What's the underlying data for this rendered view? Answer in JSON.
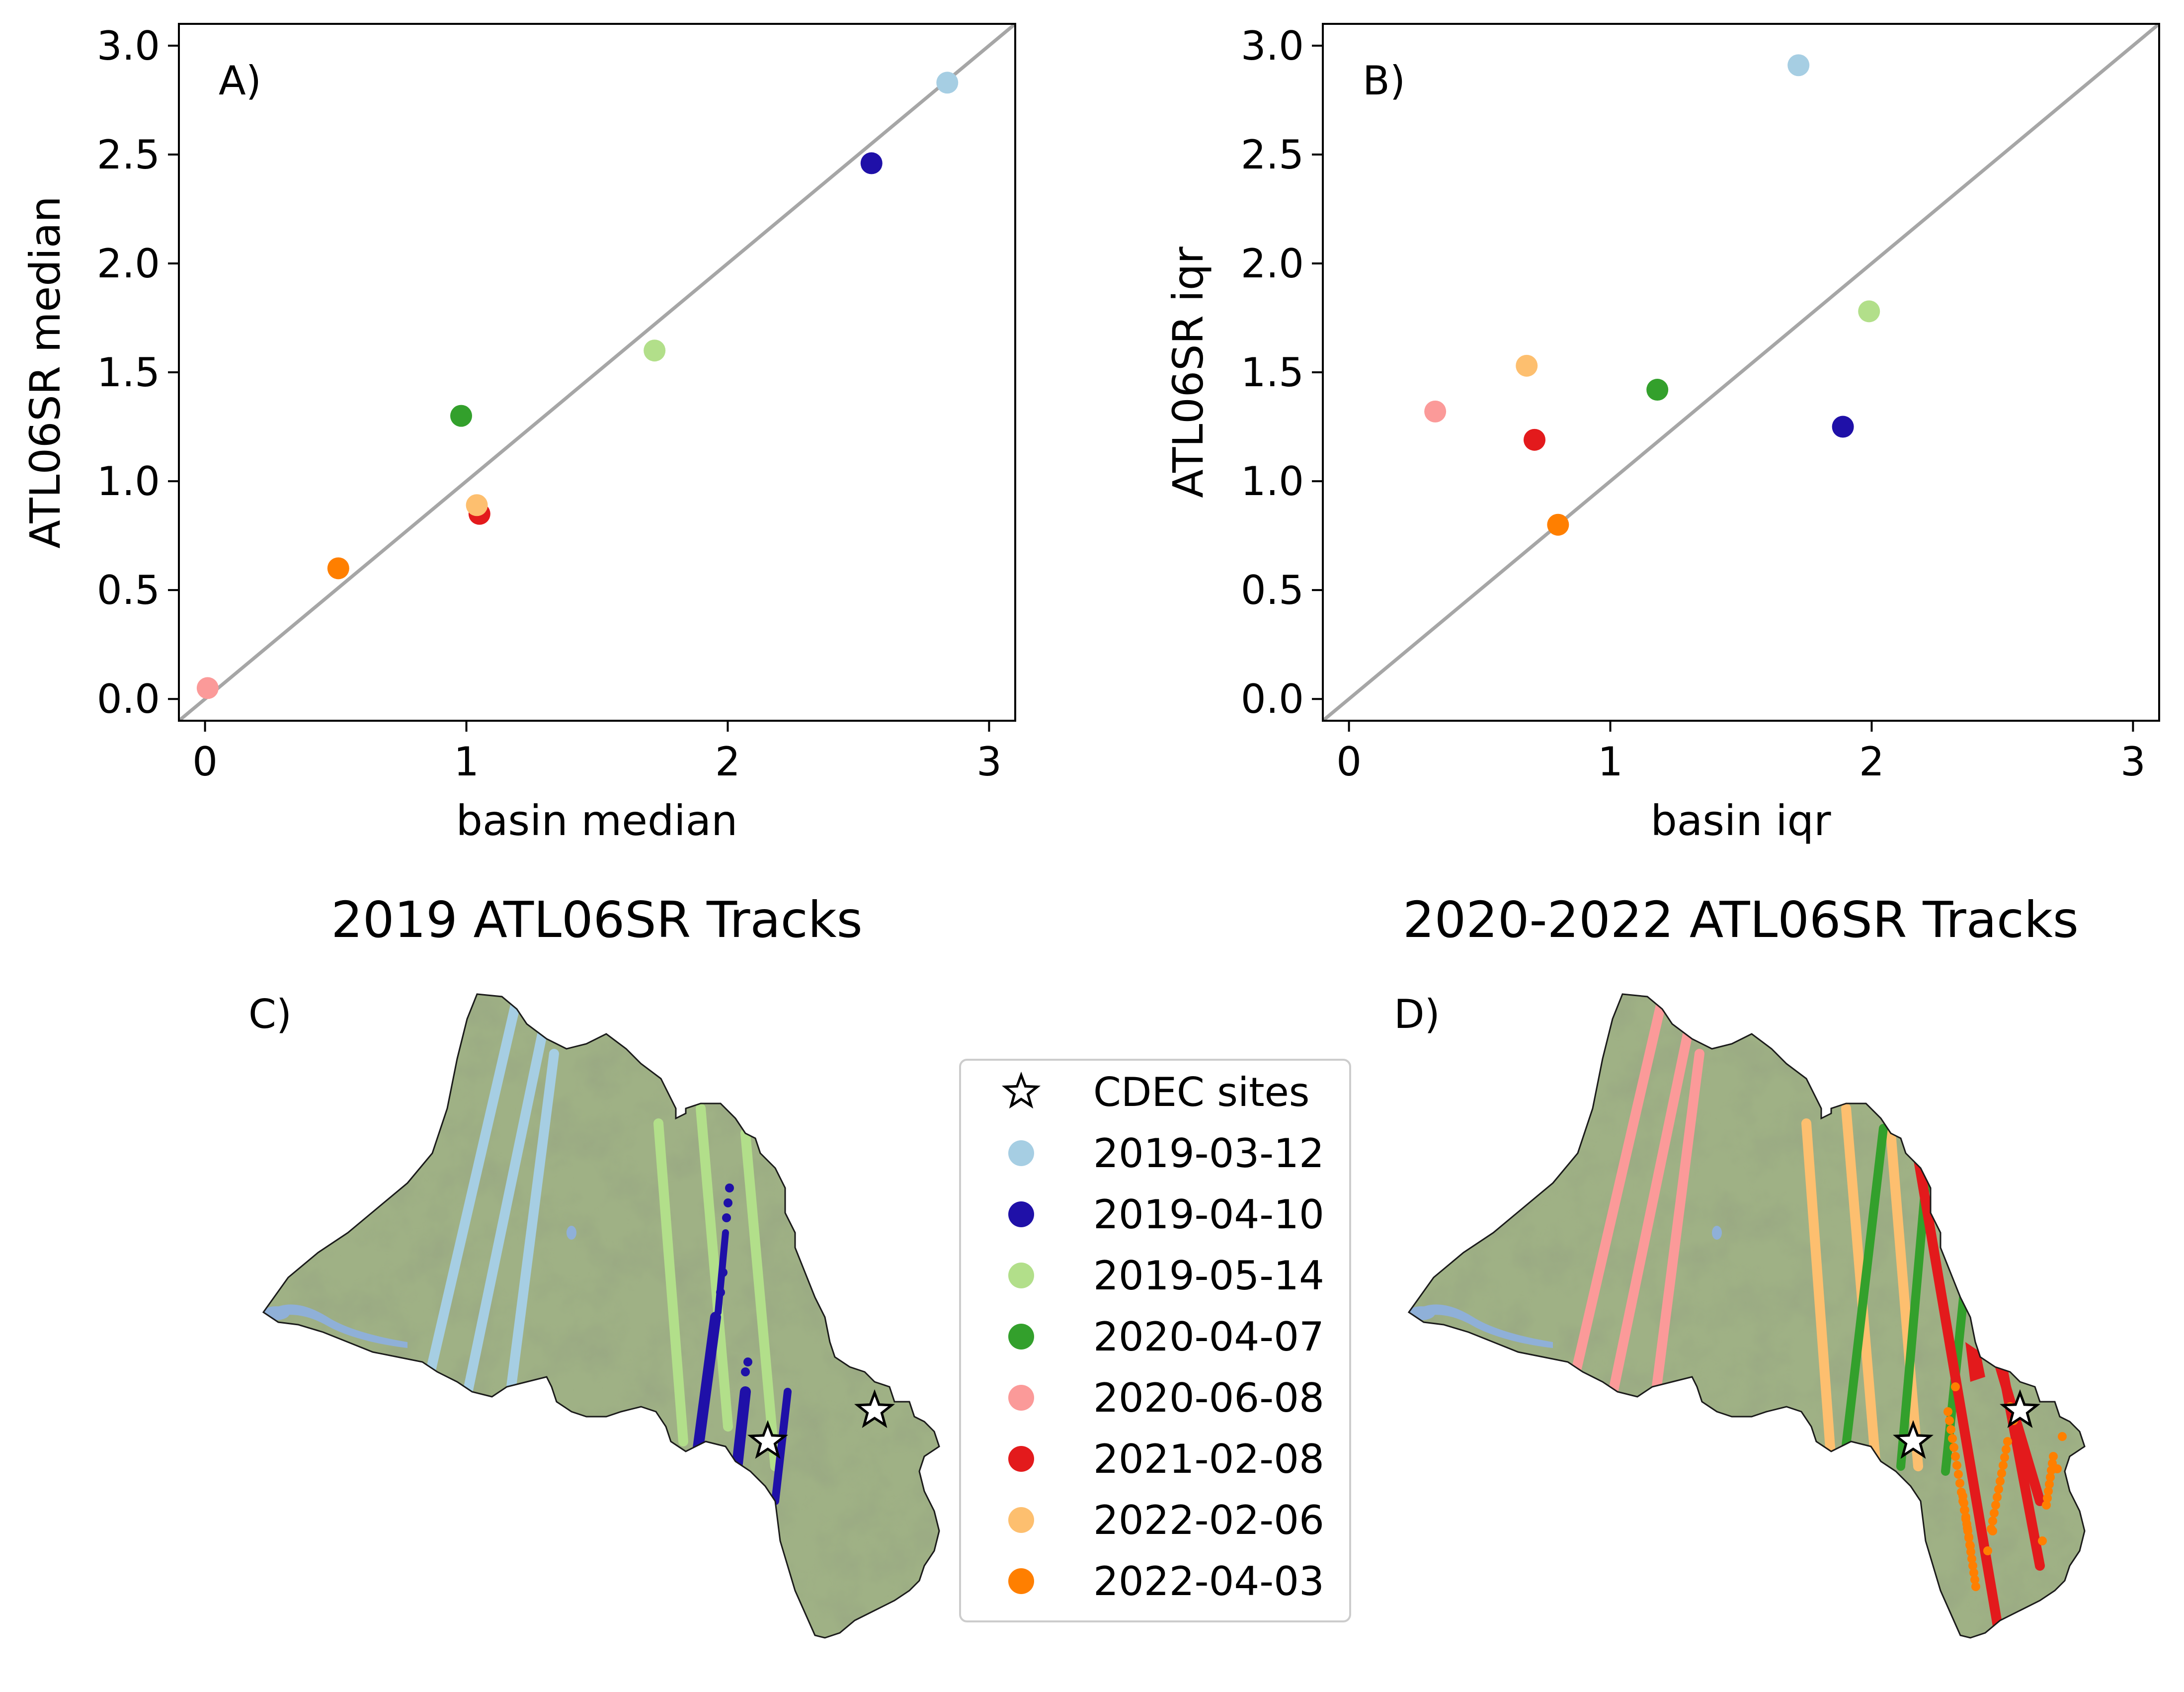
{
  "colors": {
    "2019-03-12": "#a6cee3",
    "2019-04-10": "#1f10a8",
    "2019-05-14": "#b2df8a",
    "2020-04-07": "#33a02c",
    "2020-06-08": "#fb9a99",
    "2021-02-08": "#e31a1c",
    "2022-02-06": "#fdbf6f",
    "2022-04-03": "#ff7f00",
    "identity_line": "#a6a6a6",
    "basin_fill": "#9fb185",
    "water": "#8fb0d8"
  },
  "chart_data": [
    {
      "type": "scatter",
      "panel_label": "A)",
      "xlabel": "basin median",
      "ylabel": "ATL06SR median",
      "xlim": [
        -0.1,
        3.1
      ],
      "ylim": [
        -0.1,
        3.1
      ],
      "xticks": [
        "0",
        "1",
        "2",
        "3"
      ],
      "yticks": [
        "0.0",
        "0.5",
        "1.0",
        "1.5",
        "2.0",
        "2.5",
        "3.0"
      ],
      "identity_line": true,
      "points": [
        {
          "date": "2019-03-12",
          "x": 2.84,
          "y": 2.83
        },
        {
          "date": "2019-04-10",
          "x": 2.55,
          "y": 2.46
        },
        {
          "date": "2019-05-14",
          "x": 1.72,
          "y": 1.6
        },
        {
          "date": "2020-04-07",
          "x": 0.98,
          "y": 1.3
        },
        {
          "date": "2020-06-08",
          "x": 0.01,
          "y": 0.05
        },
        {
          "date": "2021-02-08",
          "x": 1.05,
          "y": 0.85
        },
        {
          "date": "2022-02-06",
          "x": 1.04,
          "y": 0.89
        },
        {
          "date": "2022-04-03",
          "x": 0.51,
          "y": 0.6
        }
      ]
    },
    {
      "type": "scatter",
      "panel_label": "B)",
      "xlabel": "basin iqr",
      "ylabel": "ATL06SR iqr",
      "xlim": [
        -0.1,
        3.1
      ],
      "ylim": [
        -0.1,
        3.1
      ],
      "xticks": [
        "0",
        "1",
        "2",
        "3"
      ],
      "yticks": [
        "0.0",
        "0.5",
        "1.0",
        "1.5",
        "2.0",
        "2.5",
        "3.0"
      ],
      "identity_line": true,
      "points": [
        {
          "date": "2019-03-12",
          "x": 1.72,
          "y": 2.91
        },
        {
          "date": "2019-04-10",
          "x": 1.89,
          "y": 1.25
        },
        {
          "date": "2019-05-14",
          "x": 1.99,
          "y": 1.78
        },
        {
          "date": "2020-04-07",
          "x": 1.18,
          "y": 1.42
        },
        {
          "date": "2020-06-08",
          "x": 0.33,
          "y": 1.32
        },
        {
          "date": "2021-02-08",
          "x": 0.71,
          "y": 1.19
        },
        {
          "date": "2022-02-06",
          "x": 0.68,
          "y": 1.53
        },
        {
          "date": "2022-04-03",
          "x": 0.8,
          "y": 0.8
        }
      ]
    }
  ],
  "maps": [
    {
      "title": "2019 ATL06SR Tracks",
      "panel_label": "C)",
      "track_dates": [
        "2019-03-12",
        "2019-04-10",
        "2019-05-14"
      ]
    },
    {
      "title": "2020-2022 ATL06SR Tracks",
      "panel_label": "D)",
      "track_dates": [
        "2020-06-08",
        "2022-02-06",
        "2020-04-07",
        "2021-02-08",
        "2022-04-03"
      ]
    }
  ],
  "legend": {
    "site_label": "CDEC sites",
    "entries": [
      "2019-03-12",
      "2019-04-10",
      "2019-05-14",
      "2020-04-07",
      "2020-06-08",
      "2021-02-08",
      "2022-02-06",
      "2022-04-03"
    ]
  }
}
